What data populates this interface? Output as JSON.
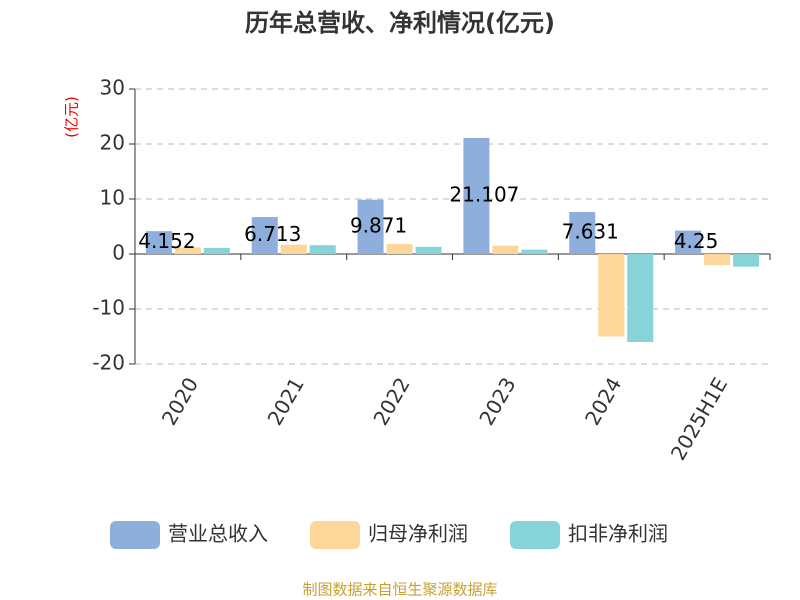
{
  "chart_data": {
    "type": "bar",
    "title": "历年总营收、净利情况(亿元)",
    "y_label": "(亿元)",
    "categories": [
      "2020",
      "2021",
      "2022",
      "2023",
      "2024",
      "2025H1E"
    ],
    "series": [
      {
        "name": "营业总收入",
        "color": "#8eaedb",
        "values": [
          4.152,
          6.713,
          9.871,
          21.107,
          7.631,
          4.25
        ],
        "labels": true
      },
      {
        "name": "归母净利润",
        "color": "#fdd699",
        "values": [
          1.2,
          1.7,
          1.8,
          1.5,
          -15,
          -2
        ]
      },
      {
        "name": "扣非净利润",
        "color": "#86d4d8",
        "values": [
          1.1,
          1.6,
          1.3,
          0.8,
          -16,
          -2.3
        ]
      }
    ],
    "ylim": [
      -20,
      30
    ],
    "yticks": [
      -20,
      -10,
      0,
      10,
      20,
      30
    ],
    "grid": true,
    "source": "制图数据来自恒生聚源数据库"
  }
}
